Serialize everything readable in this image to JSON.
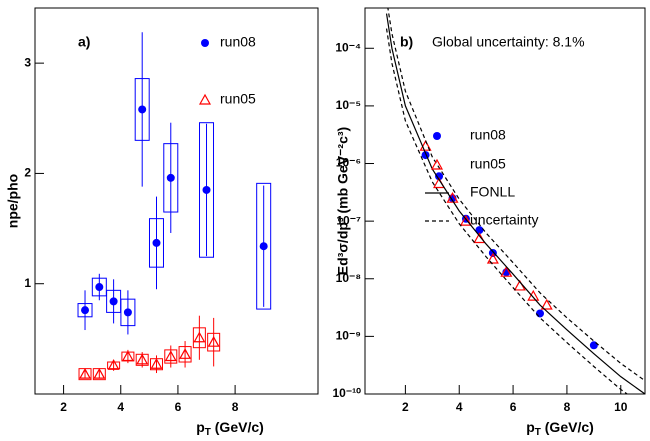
{
  "chart_data": [
    {
      "type": "scatter",
      "panel_label": "a)",
      "y_label": "npe/pho",
      "x_label": [
        "p",
        "T",
        " (GeV/c)"
      ],
      "xlim": [
        1,
        10.9
      ],
      "xticks": [
        2,
        4,
        6,
        8
      ],
      "ylim": [
        0,
        3.5
      ],
      "yticks": [
        1,
        2,
        3
      ],
      "log_y": false,
      "series": [
        {
          "name": "run08",
          "color": "#0000ff",
          "marker": "circle",
          "x": [
            2.75,
            3.25,
            3.75,
            4.25,
            4.75,
            5.25,
            5.75,
            7,
            9
          ],
          "values": [
            0.76,
            0.97,
            0.84,
            0.74,
            2.58,
            1.37,
            1.96,
            1.85,
            1.34
          ],
          "errors": [
            0.18,
            0.12,
            0.2,
            0.2,
            0.7,
            0.42,
            0.5,
            0.6,
            0.55
          ],
          "syst": [
            0.06,
            0.08,
            0.1,
            0.12,
            0.28,
            0.22,
            0.31,
            0.61,
            0.57
          ]
        },
        {
          "name": "run05",
          "color": "#ff0000",
          "marker": "triangle",
          "x": [
            2.75,
            3.25,
            3.75,
            4.25,
            4.75,
            5.25,
            5.75,
            6.25,
            6.75,
            7.25
          ],
          "values": [
            0.18,
            0.18,
            0.26,
            0.34,
            0.31,
            0.27,
            0.34,
            0.36,
            0.51,
            0.47
          ],
          "errors": [
            0.04,
            0.04,
            0.05,
            0.06,
            0.07,
            0.08,
            0.1,
            0.12,
            0.2,
            0.22
          ],
          "syst": [
            0.05,
            0.05,
            0.03,
            0.04,
            0.05,
            0.05,
            0.06,
            0.07,
            0.09,
            0.08
          ]
        }
      ]
    },
    {
      "type": "scatter",
      "panel_label": "b)",
      "annotation": "Global uncertainty: 8.1%",
      "y_label": "Ed³σ/dp³ (mb GeV⁻²c³)",
      "x_label": [
        "p",
        "T",
        " (GeV/c)"
      ],
      "xlim": [
        0.5,
        10.9
      ],
      "xticks": [
        2,
        4,
        6,
        8,
        10
      ],
      "ylim": [
        1e-10,
        0.0005
      ],
      "log_y": true,
      "yticks": [
        {
          "value": 1e-10,
          "label": "10⁻¹⁰"
        },
        {
          "value": 1e-09,
          "label": "10⁻⁹"
        },
        {
          "value": 1e-08,
          "label": "10⁻⁸"
        },
        {
          "value": 1e-07,
          "label": "10⁻⁷"
        },
        {
          "value": 1e-06,
          "label": "10⁻⁶"
        },
        {
          "value": 1e-05,
          "label": "10⁻⁵"
        },
        {
          "value": 0.0001,
          "label": "10⁻⁴"
        }
      ],
      "series": [
        {
          "name": "run08",
          "color": "#0000ff",
          "marker": "circle",
          "x": [
            2.75,
            3.25,
            3.75,
            4.25,
            4.75,
            5.25,
            5.75,
            7,
            9
          ],
          "values": [
            1.4e-06,
            6e-07,
            2.5e-07,
            1.1e-07,
            7e-08,
            2.8e-08,
            1.3e-08,
            2.5e-09,
            7e-10
          ]
        },
        {
          "name": "run05",
          "color": "#ff0000",
          "marker": "triangle",
          "x": [
            2.75,
            3.25,
            3.75,
            4.25,
            4.75,
            5.25,
            5.75,
            6.25,
            6.75,
            7.25
          ],
          "values": [
            2e-06,
            4.5e-07,
            2.5e-07,
            1e-07,
            5e-08,
            2.2e-08,
            1.3e-08,
            7.5e-09,
            5e-09,
            3.5e-09
          ]
        },
        {
          "name": "FONLL",
          "color": "#000000",
          "marker": "line",
          "x": [
            1.3,
            1.5,
            2,
            3,
            4,
            5,
            6,
            7,
            8,
            9,
            10,
            10.9
          ],
          "values": [
            0.0004,
            0.0001,
            1e-05,
            8e-07,
            1.5e-07,
            4e-08,
            1.2e-08,
            3.5e-09,
            1.3e-09,
            5e-10,
            2e-10,
            1e-10
          ]
        },
        {
          "name": "uncertainty",
          "color": "#000000",
          "marker": "dashed",
          "x": [
            1.3,
            1.5,
            2,
            3,
            4,
            5,
            6,
            7,
            8,
            9,
            10,
            10.9
          ],
          "upper": [
            0.0007,
            0.00018,
            1.8e-05,
            1.3e-06,
            2.4e-07,
            6.2e-08,
            1.9e-08,
            5.7e-09,
            2.1e-09,
            8.3e-10,
            3.4e-10,
            1.7e-10
          ],
          "lower": [
            0.00022,
            5.5e-05,
            5.5e-06,
            4.8e-07,
            9e-08,
            2.4e-08,
            7e-09,
            2.1e-09,
            7.8e-10,
            3e-10,
            1.2e-10,
            6e-11
          ]
        }
      ]
    }
  ]
}
